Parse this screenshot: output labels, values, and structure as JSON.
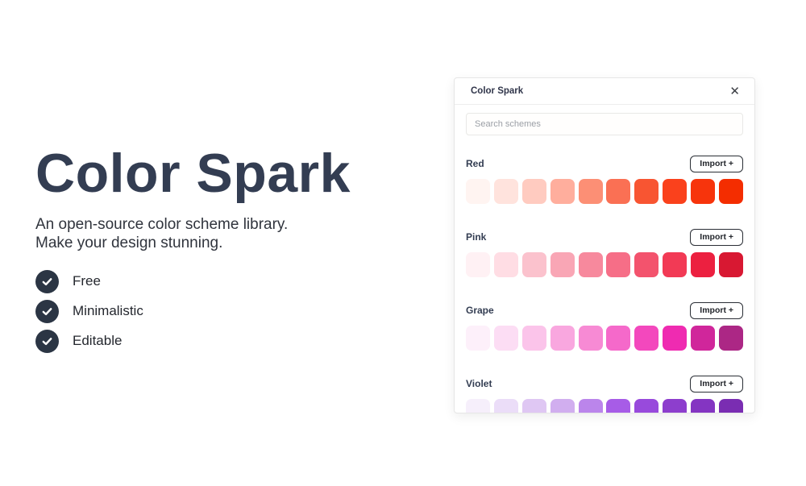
{
  "hero": {
    "title": "Color Spark",
    "tagline_line1": "An open-source color scheme library.",
    "tagline_line2": "Make your design stunning.",
    "features": [
      {
        "label": "Free"
      },
      {
        "label": "Minimalistic"
      },
      {
        "label": "Editable"
      }
    ],
    "title_color": "#333d52",
    "check_badge_color": "#2b3544"
  },
  "panel": {
    "title": "Color Spark",
    "close_icon": "✕",
    "search": {
      "placeholder": "Search schemes",
      "value": ""
    },
    "import_label": "Import +",
    "schemes": [
      {
        "name": "Red",
        "colors": [
          "#FFF4F1",
          "#FFE3DD",
          "#FFCBC0",
          "#FFAE9D",
          "#FC8F75",
          "#FA7054",
          "#F85532",
          "#FA411C",
          "#F7340C",
          "#F42D00"
        ]
      },
      {
        "name": "Pink",
        "colors": [
          "#FFF1F4",
          "#FFDDE4",
          "#FBC2CD",
          "#F9A6B5",
          "#F7899D",
          "#F66E87",
          "#F3536D",
          "#F23A55",
          "#EC2040",
          "#D81832"
        ]
      },
      {
        "name": "Grape",
        "colors": [
          "#FDF0FA",
          "#FCDDF4",
          "#FBC4EA",
          "#F9A7DF",
          "#F78AD4",
          "#F569CA",
          "#F348BD",
          "#EF2BB1",
          "#D0269B",
          "#AC2785"
        ]
      },
      {
        "name": "Violet",
        "colors": [
          "#F6EFFB",
          "#EBDDF8",
          "#DFC7F3",
          "#D1AEEF",
          "#BB85EB",
          "#A75CE7",
          "#984ADC",
          "#8D3ECD",
          "#8435C2",
          "#7A2DB2"
        ]
      }
    ]
  }
}
